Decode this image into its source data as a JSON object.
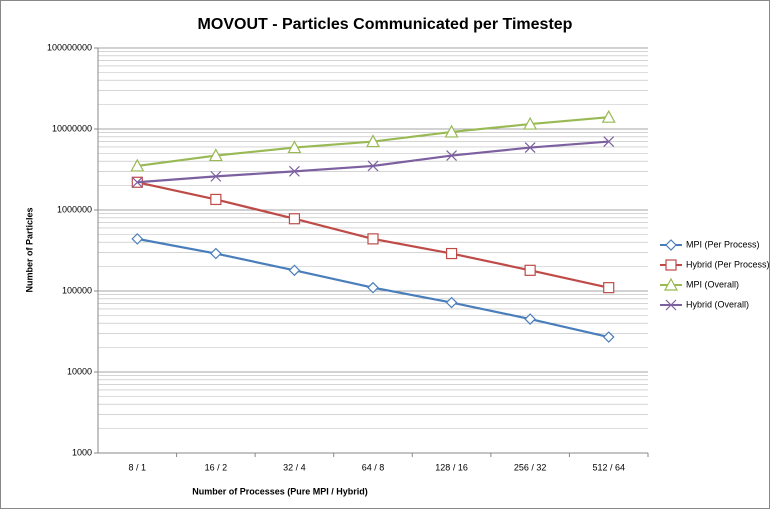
{
  "chart_data": {
    "type": "line",
    "title": "MOVOUT - Particles Communicated per Timestep",
    "x_label": "Number of  Processes (Pure MPI / Hybrid)",
    "y_label": "Number of Particles",
    "categories": [
      "8 / 1",
      "16 / 2",
      "32 / 4",
      "64 / 8",
      "128 / 16",
      "256 / 32",
      "512 / 64"
    ],
    "series": [
      {
        "name": "MPI (Per Process)",
        "color": "#4a7ebb",
        "marker": "diamond",
        "values": [
          440000,
          290000,
          180000,
          110000,
          72000,
          45000,
          27000
        ]
      },
      {
        "name": "Hybrid (Per Process)",
        "color": "#be4b48",
        "marker": "square",
        "values": [
          2200000,
          1350000,
          780000,
          440000,
          290000,
          180000,
          110000
        ]
      },
      {
        "name": "MPI (Overall)",
        "color": "#98b954",
        "marker": "triangle",
        "values": [
          3500000,
          4700000,
          5900000,
          7000000,
          9200000,
          11500000,
          14000000
        ]
      },
      {
        "name": "Hybrid (Overall)",
        "color": "#7d60a0",
        "marker": "x",
        "values": [
          2200000,
          2600000,
          3000000,
          3500000,
          4700000,
          5900000,
          7000000
        ]
      }
    ],
    "log_y": true,
    "ylim": [
      1000,
      100000000
    ],
    "yticks": [
      1000,
      10000,
      100000,
      1000000,
      10000000,
      100000000
    ],
    "grid": true,
    "legend": "right"
  }
}
